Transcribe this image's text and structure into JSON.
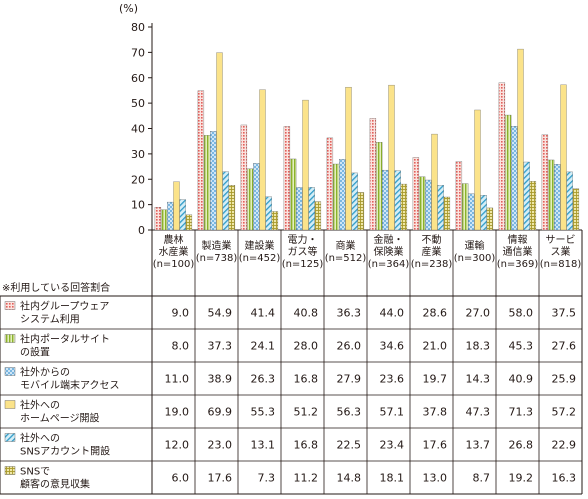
{
  "chart_data": {
    "type": "bar",
    "unit": "(%)",
    "ylim": [
      0,
      80
    ],
    "yticks": [
      0,
      10,
      20,
      30,
      40,
      50,
      60,
      70,
      80
    ],
    "grid": false,
    "table_header_note": "※利用している回答割合",
    "categories": [
      [
        "農林",
        "水産業",
        "(n=100)"
      ],
      [
        "製造業",
        "(n=738)"
      ],
      [
        "建設業",
        "(n=452)"
      ],
      [
        "電力・",
        "ガス等",
        "(n=125)"
      ],
      [
        "商業",
        "(n=512)"
      ],
      [
        "金融・",
        "保険業",
        "(n=364)"
      ],
      [
        "不動",
        "産業",
        "(n=238)"
      ],
      [
        "運輸",
        "(n=300)"
      ],
      [
        "情報",
        "通信業",
        "(n=369)"
      ],
      [
        "サービ",
        "ス業",
        "(n=818)"
      ]
    ],
    "series": [
      {
        "name": [
          "社内グループウェア",
          "システム利用"
        ],
        "values": [
          9.0,
          54.9,
          41.4,
          40.8,
          36.3,
          44.0,
          28.6,
          27.0,
          58.0,
          37.5
        ],
        "pattern": "grid",
        "color": "#e8746f",
        "bg": "#fbe3df"
      },
      {
        "name": [
          "社内ポータルサイト",
          "の設置"
        ],
        "values": [
          8.0,
          37.3,
          24.1,
          28.0,
          26.0,
          34.6,
          21.0,
          18.3,
          45.3,
          27.6
        ],
        "pattern": "vlines",
        "color": "#9cbf3a",
        "bg": "#e4efbe"
      },
      {
        "name": [
          "社外からの",
          "モバイル端末アクセス"
        ],
        "values": [
          11.0,
          38.9,
          26.3,
          16.8,
          27.9,
          23.6,
          19.7,
          14.3,
          40.9,
          25.9
        ],
        "pattern": "dots",
        "color": "#4a9fd8",
        "bg": "#cfe6f6"
      },
      {
        "name": [
          "社外への",
          "ホームページ開設"
        ],
        "values": [
          19.0,
          69.9,
          55.3,
          51.2,
          56.3,
          57.1,
          37.8,
          47.3,
          71.3,
          57.2
        ],
        "pattern": "solid",
        "color": "#fbe38a",
        "bg": "#fbe38a"
      },
      {
        "name": [
          "社外への",
          "SNSアカウント開設"
        ],
        "values": [
          12.0,
          23.0,
          13.1,
          16.8,
          22.5,
          23.4,
          17.6,
          13.7,
          26.8,
          22.9
        ],
        "pattern": "diag",
        "color": "#3aa2cc",
        "bg": "#cde9f3"
      },
      {
        "name": [
          "SNSで",
          "顧客の意見収集"
        ],
        "values": [
          6.0,
          17.6,
          7.3,
          11.2,
          14.8,
          18.1,
          13.0,
          8.7,
          19.2,
          16.3
        ],
        "pattern": "cross",
        "color": "#b9a73a",
        "bg": "#efe7a6"
      }
    ]
  }
}
